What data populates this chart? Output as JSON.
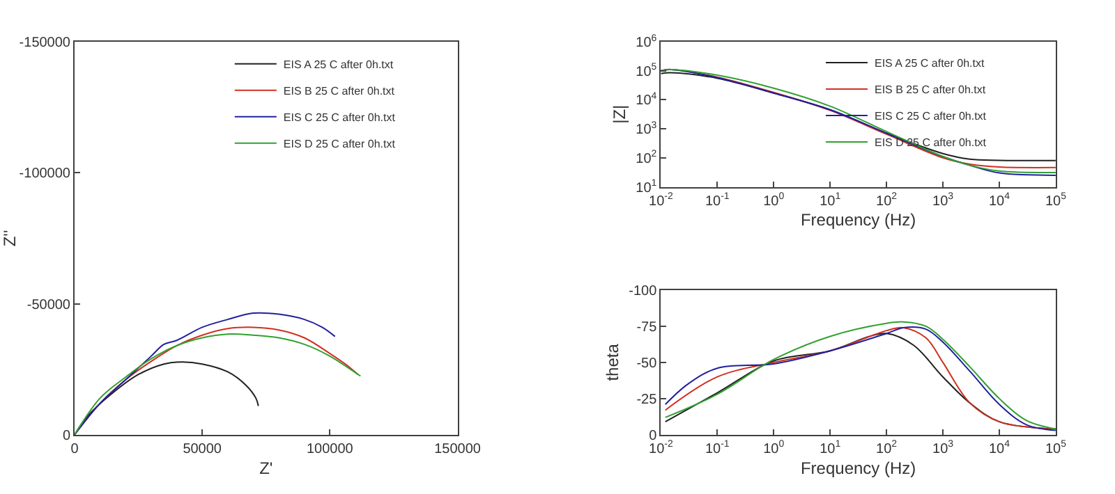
{
  "chart_data": [
    {
      "type": "line",
      "xlabel": "Z'",
      "ylabel": "Z''",
      "xlim": [
        0,
        150000
      ],
      "ylim": [
        0,
        -150000
      ],
      "xticks": [
        0,
        50000,
        100000,
        150000
      ],
      "yticks": [
        0,
        -50000,
        -100000,
        -150000
      ],
      "legend": "top right",
      "series": [
        {
          "name": "EIS A 25 C after 0h.txt",
          "color": "#202020",
          "x": [
            0,
            5000,
            15000,
            25000,
            35000,
            42000,
            50000,
            60000,
            67000,
            71000,
            72000
          ],
          "values": [
            0,
            -7000,
            -16000,
            -23000,
            -27000,
            -27800,
            -27000,
            -24000,
            -19000,
            -14000,
            -11000
          ]
        },
        {
          "name": "EIS B 25 C after 0h.txt",
          "color": "#d03020",
          "x": [
            0,
            10000,
            20000,
            30000,
            40000,
            50000,
            60000,
            70000,
            80000,
            90000,
            100000,
            106000,
            111000
          ],
          "values": [
            0,
            -12000,
            -21000,
            -28000,
            -34000,
            -38000,
            -40500,
            -41000,
            -40000,
            -37000,
            -31000,
            -27000,
            -23000
          ]
        },
        {
          "name": "EIS C 25 C after 0h.txt",
          "color": "#2020a0",
          "x": [
            0,
            10000,
            20000,
            30000,
            35000,
            40000,
            50000,
            60000,
            70000,
            80000,
            90000,
            97000,
            102000
          ],
          "values": [
            0,
            -12000,
            -21000,
            -30000,
            -34500,
            -36000,
            -41000,
            -44000,
            -46400,
            -46000,
            -44000,
            -41000,
            -37500
          ]
        },
        {
          "name": "EIS D 25 C after 0h.txt",
          "color": "#30a030",
          "x": [
            0,
            10000,
            20000,
            30000,
            40000,
            50000,
            60000,
            70000,
            80000,
            90000,
            100000,
            108000,
            112000
          ],
          "values": [
            0,
            -14000,
            -22000,
            -29000,
            -34000,
            -37000,
            -38400,
            -38000,
            -37000,
            -34500,
            -30000,
            -25000,
            -22400
          ]
        }
      ]
    },
    {
      "type": "line",
      "xlabel": "Frequency (Hz)",
      "ylabel": "|Z|",
      "log": "xy",
      "xlim": [
        0.01,
        100000
      ],
      "ylim": [
        10,
        1000000
      ],
      "xticks": [
        {
          "value": 0.01,
          "label": "10$^{-2}$"
        },
        {
          "value": 0.1,
          "label": "10$^{-1}$"
        },
        {
          "value": 1,
          "label": "10$^{0}$"
        },
        {
          "value": 10,
          "label": "10$^{1}$"
        },
        {
          "value": 100,
          "label": "10$^{2}$"
        },
        {
          "value": 1000,
          "label": "10$^{3}$"
        },
        {
          "value": 10000,
          "label": "10$^{4}$"
        },
        {
          "value": 100000,
          "label": "10$^{5}$"
        }
      ],
      "yticks": [
        {
          "value": 10,
          "label": "10$^{1}$"
        },
        {
          "value": 100,
          "label": "10$^{2}$"
        },
        {
          "value": 1000,
          "label": "10$^{3}$"
        },
        {
          "value": 10000,
          "label": "10$^{4}$"
        },
        {
          "value": 100000,
          "label": "10$^{5}$"
        },
        {
          "value": 1000000,
          "label": "10$^{6}$"
        }
      ],
      "legend": "top right",
      "x": [
        0.01,
        0.015,
        0.1,
        1,
        10,
        100,
        1000,
        3000,
        10000,
        100000
      ],
      "series": [
        {
          "name": "EIS A 25 C after 0h.txt",
          "color": "#202020",
          "values": [
            80000,
            85000,
            55000,
            17000,
            4500,
            700,
            140,
            90,
            82,
            80
          ]
        },
        {
          "name": "EIS B 25 C after 0h.txt",
          "color": "#d03020",
          "values": [
            100000,
            110000,
            60000,
            18000,
            4300,
            650,
            100,
            60,
            48,
            46
          ]
        },
        {
          "name": "EIS C 25 C after 0h.txt",
          "color": "#2020a0",
          "values": [
            100000,
            110000,
            58000,
            17000,
            4500,
            700,
            110,
            55,
            30,
            25
          ]
        },
        {
          "name": "EIS D 25 C after 0h.txt",
          "color": "#30a030",
          "values": [
            100000,
            110000,
            70000,
            25000,
            6000,
            800,
            110,
            55,
            35,
            31
          ]
        }
      ]
    },
    {
      "type": "line",
      "xlabel": "Frequency (Hz)",
      "ylabel": "theta",
      "log": "x",
      "xlim": [
        0.01,
        100000
      ],
      "ylim": [
        0,
        -100
      ],
      "xticks": [
        {
          "value": 0.01,
          "label": "10$^{-2}$"
        },
        {
          "value": 0.1,
          "label": "10$^{-1}$"
        },
        {
          "value": 1,
          "label": "10$^{0}$"
        },
        {
          "value": 10,
          "label": "10$^{1}$"
        },
        {
          "value": 100,
          "label": "10$^{2}$"
        },
        {
          "value": 1000,
          "label": "10$^{3}$"
        },
        {
          "value": 10000,
          "label": "10$^{4}$"
        },
        {
          "value": 100000,
          "label": "10$^{5}$"
        }
      ],
      "yticks": [
        0,
        -25,
        -50,
        -75,
        -100
      ],
      "series": [
        {
          "color": "#202020",
          "x": [
            0.012,
            0.1,
            1,
            10,
            50,
            100,
            300,
            1000,
            3000,
            10000,
            100000
          ],
          "values": [
            -9,
            -29,
            -51,
            -58,
            -68,
            -70,
            -62,
            -40,
            -22,
            -9,
            -4
          ]
        },
        {
          "color": "#d03020",
          "x": [
            0.012,
            0.1,
            1,
            10,
            100,
            200,
            500,
            1000,
            3000,
            10000,
            100000
          ],
          "values": [
            -17,
            -40,
            -50,
            -58,
            -72,
            -74,
            -67,
            -50,
            -22,
            -9,
            -4
          ]
        },
        {
          "color": "#2020a0",
          "x": [
            0.012,
            0.03,
            0.1,
            1,
            10,
            100,
            200,
            500,
            1000,
            3000,
            10000,
            30000,
            100000
          ],
          "values": [
            -21,
            -35,
            -46,
            -49,
            -58,
            -70,
            -74,
            -73,
            -64,
            -44,
            -21,
            -7,
            -3
          ]
        },
        {
          "color": "#30a030",
          "x": [
            0.012,
            0.1,
            1,
            10,
            100,
            200,
            500,
            1000,
            3000,
            10000,
            30000,
            100000
          ],
          "values": [
            -12,
            -28,
            -52,
            -68,
            -77,
            -78,
            -75,
            -66,
            -47,
            -25,
            -10,
            -4
          ]
        }
      ]
    }
  ]
}
